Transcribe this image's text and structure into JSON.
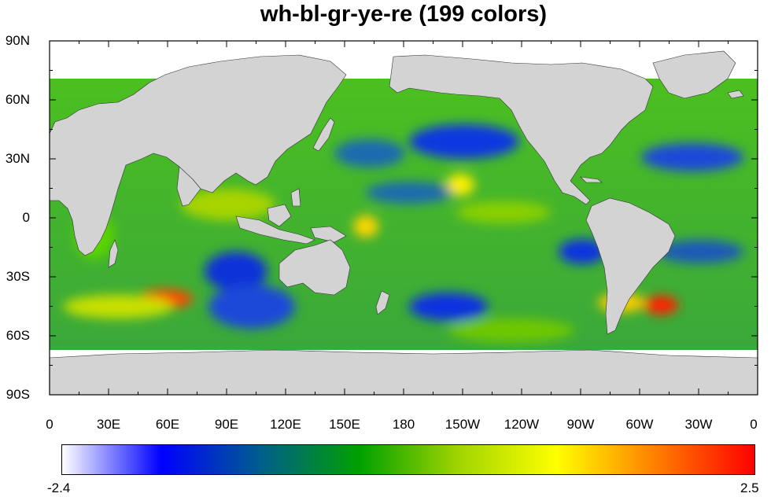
{
  "title": "wh-bl-gr-ye-re (199 colors)",
  "map": {
    "projection": "cylindrical-equidistant",
    "lon_range": [
      0,
      360
    ],
    "lat_range": [
      -90,
      90
    ],
    "land_color": "#d3d3d3",
    "no_data_color": "#ffffff",
    "y_ticks": [
      {
        "lat": 90,
        "label": "90N"
      },
      {
        "lat": 60,
        "label": "60N"
      },
      {
        "lat": 30,
        "label": "30N"
      },
      {
        "lat": 0,
        "label": "0"
      },
      {
        "lat": -30,
        "label": "30S"
      },
      {
        "lat": -60,
        "label": "60S"
      },
      {
        "lat": -90,
        "label": "90S"
      }
    ],
    "x_ticks": [
      {
        "lon": 0,
        "label": "0"
      },
      {
        "lon": 30,
        "label": "30E"
      },
      {
        "lon": 60,
        "label": "60E"
      },
      {
        "lon": 90,
        "label": "90E"
      },
      {
        "lon": 120,
        "label": "120E"
      },
      {
        "lon": 150,
        "label": "150E"
      },
      {
        "lon": 180,
        "label": "180"
      },
      {
        "lon": 210,
        "label": "150W"
      },
      {
        "lon": 240,
        "label": "120W"
      },
      {
        "lon": 270,
        "label": "90W"
      },
      {
        "lon": 300,
        "label": "60W"
      },
      {
        "lon": 330,
        "label": "30W"
      },
      {
        "lon": 360,
        "label": "0"
      }
    ]
  },
  "colorbar": {
    "min_label": "-2.4",
    "max_label": "2.5",
    "min": -2.4,
    "max": 2.5,
    "stops": [
      "#ffffff",
      "#0000ff",
      "#005e8c",
      "#00a000",
      "#9fd400",
      "#ffff00",
      "#ff7f00",
      "#ff0000"
    ]
  }
}
